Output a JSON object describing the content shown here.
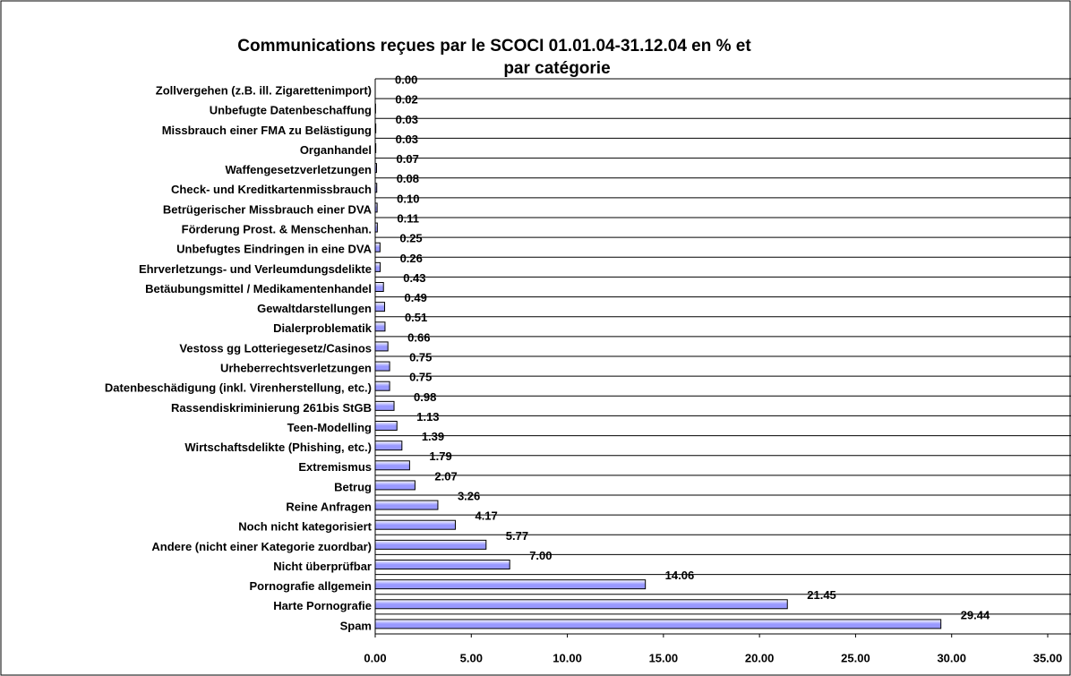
{
  "chart_data": {
    "type": "bar",
    "orientation": "horizontal",
    "title": [
      "Communications reçues par le SCOCI  01.01.04-31.12.04 en % et",
      "par catégorie"
    ],
    "categories": [
      "Zollvergehen (z.B. ill. Zigarettenimport)",
      "Unbefugte Datenbeschaffung",
      "Missbrauch einer FMA zu Belästigung",
      "Organhandel",
      "Waffengesetzverletzungen",
      "Check- und Kreditkartenmissbrauch",
      "Betrügerischer Missbrauch einer DVA",
      "Förderung Prost. & Menschenhan.",
      "Unbefugtes Eindringen in eine DVA",
      "Ehrverletzungs- und Verleumdungsdelikte",
      "Betäubungsmittel / Medikamentenhandel",
      "Gewaltdarstellungen",
      "Dialerproblematik",
      "Vestoss gg Lotteriegesetz/Casinos",
      "Urheberrechtsverletzungen",
      "Datenbeschädigung (inkl. Virenherstellung, etc.)",
      "Rassendiskriminierung 261bis StGB",
      "Teen-Modelling",
      "Wirtschaftsdelikte (Phishing, etc.)",
      "Extremismus",
      "Betrug",
      "Reine Anfragen",
      "Noch nicht kategorisiert",
      "Andere (nicht einer Kategorie zuordbar)",
      "Nicht überprüfbar",
      "Pornografie allgemein",
      "Harte Pornografie",
      "Spam"
    ],
    "values": [
      0,
      0.02,
      0.03,
      0.03,
      0.07,
      0.08,
      0.1,
      0.11,
      0.25,
      0.26,
      0.43,
      0.49,
      0.51,
      0.66,
      0.75,
      0.75,
      0.98,
      1.13,
      1.39,
      1.79,
      2.07,
      3.26,
      4.17,
      5.77,
      7,
      14.06,
      21.45,
      29.44
    ],
    "value_labels": [
      "0.00",
      "0.02",
      "0.03",
      "0.03",
      "0.07",
      "0.08",
      "0.10",
      "0.11",
      "0.25",
      "0.26",
      "0.43",
      "0.49",
      "0.51",
      "0.66",
      "0.75",
      "0.75",
      "0.98",
      "1.13",
      "1.39",
      "1.79",
      "2.07",
      "3.26",
      "4.17",
      "5.77",
      "7.00",
      "14.06",
      "21.45",
      "29.44"
    ],
    "color": "#9999ff",
    "xlim": [
      0,
      35
    ],
    "xticks": [
      {
        "value": 0,
        "label": "0.00"
      },
      {
        "value": 5,
        "label": "5.00"
      },
      {
        "value": 10,
        "label": "10.00"
      },
      {
        "value": 15,
        "label": "15.00"
      },
      {
        "value": 20,
        "label": "20.00"
      },
      {
        "value": 25,
        "label": "25.00"
      },
      {
        "value": 30,
        "label": "30.00"
      },
      {
        "value": 35,
        "label": "35.00"
      }
    ]
  }
}
